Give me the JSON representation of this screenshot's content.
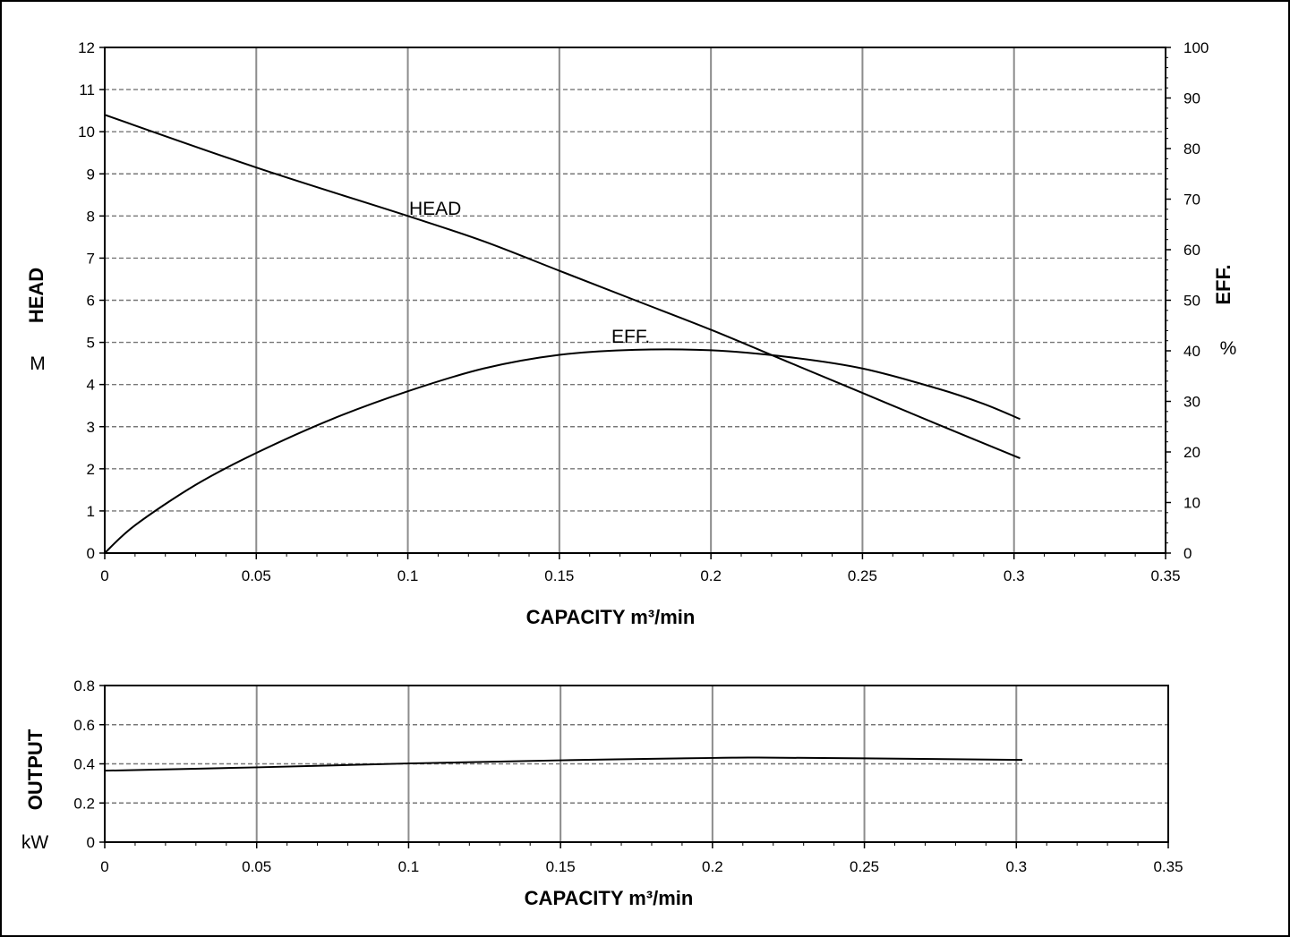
{
  "chart_data": [
    {
      "type": "line",
      "xlabel": "CAPACITY m³/min",
      "ylabel": "HEAD",
      "ylabel_unit": "M",
      "y2label": "EFF.",
      "y2label_unit": "%",
      "xlim": [
        0,
        0.35
      ],
      "ylim": [
        0,
        12
      ],
      "y2lim": [
        0,
        100
      ],
      "x_ticks": [
        "0",
        "0.05",
        "0.1",
        "0.15",
        "0.2",
        "0.25",
        "0.3",
        "0.35"
      ],
      "y_ticks": [
        "0",
        "1",
        "2",
        "3",
        "4",
        "5",
        "6",
        "7",
        "8",
        "9",
        "10",
        "11",
        "12"
      ],
      "y2_ticks": [
        "0",
        "10",
        "20",
        "30",
        "40",
        "50",
        "60",
        "70",
        "80",
        "90",
        "100"
      ],
      "grid": true,
      "series": [
        {
          "name": "HEAD",
          "axis": "left",
          "x": [
            0,
            0.05,
            0.1,
            0.125,
            0.15,
            0.175,
            0.2,
            0.225,
            0.25,
            0.275,
            0.302
          ],
          "y": [
            10.4,
            9.15,
            8.0,
            7.4,
            6.7,
            6.0,
            5.3,
            4.55,
            3.8,
            3.05,
            2.25
          ]
        },
        {
          "name": "EFF.",
          "axis": "right",
          "x": [
            0,
            0.01,
            0.03,
            0.05,
            0.075,
            0.1,
            0.125,
            0.15,
            0.175,
            0.2,
            0.225,
            0.25,
            0.275,
            0.29,
            0.302
          ],
          "y": [
            0,
            5.5,
            13.5,
            19.8,
            26.5,
            32.0,
            36.5,
            39.2,
            40.2,
            40.1,
            38.8,
            36.5,
            32.5,
            29.5,
            26.5
          ]
        }
      ]
    },
    {
      "type": "line",
      "xlabel": "CAPACITY m³/min",
      "ylabel": "OUTPUT",
      "ylabel_unit": "kW",
      "xlim": [
        0,
        0.35
      ],
      "ylim": [
        0,
        0.8
      ],
      "x_ticks": [
        "0",
        "0.05",
        "0.1",
        "0.15",
        "0.2",
        "0.25",
        "0.3",
        "0.35"
      ],
      "y_ticks": [
        "0",
        "0.2",
        "0.4",
        "0.6",
        "0.8"
      ],
      "grid": true,
      "series": [
        {
          "name": "OUTPUT",
          "x": [
            0,
            0.05,
            0.1,
            0.15,
            0.2,
            0.215,
            0.25,
            0.302
          ],
          "y": [
            0.365,
            0.382,
            0.402,
            0.418,
            0.43,
            0.432,
            0.428,
            0.42
          ]
        }
      ]
    }
  ]
}
